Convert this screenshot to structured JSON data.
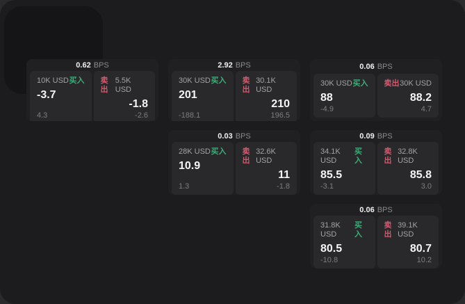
{
  "labels": {
    "bps_unit": "BPS",
    "buy": "买入",
    "sell": "卖出"
  },
  "colors": {
    "buy": "#3fab78",
    "sell": "#d25a6e",
    "window_bg": "#1c1c1e",
    "card_bg": "#202022",
    "panel_bg": "#29292c"
  },
  "cards": [
    {
      "col": 1,
      "row": 1,
      "bps": "0.62",
      "buy": {
        "amount": "10K USD",
        "value": "-3.7",
        "sub": "4.3"
      },
      "sell": {
        "amount": "5.5K USD",
        "value": "-1.8",
        "sub": "-2.6"
      }
    },
    {
      "col": 2,
      "row": 1,
      "bps": "2.92",
      "buy": {
        "amount": "30K USD",
        "value": "201",
        "sub": "-188.1"
      },
      "sell": {
        "amount": "30.1K USD",
        "value": "210",
        "sub": "196.5"
      }
    },
    {
      "col": 3,
      "row": 1,
      "bps": "0.06",
      "buy": {
        "amount": "30K USD",
        "value": "88",
        "sub": "-4.9"
      },
      "sell": {
        "amount": "30K USD",
        "value": "88.2",
        "sub": "4.7"
      }
    },
    {
      "col": 2,
      "row": 2,
      "bps": "0.03",
      "buy": {
        "amount": "28K USD",
        "value": "10.9",
        "sub": "1.3"
      },
      "sell": {
        "amount": "32.6K USD",
        "value": "11",
        "sub": "-1.8"
      }
    },
    {
      "col": 3,
      "row": 2,
      "bps": "0.09",
      "buy": {
        "amount": "34.1K USD",
        "value": "85.5",
        "sub": "-3.1"
      },
      "sell": {
        "amount": "32.8K USD",
        "value": "85.8",
        "sub": "3.0"
      }
    },
    {
      "col": 3,
      "row": 3,
      "bps": "0.06",
      "buy": {
        "amount": "31.8K USD",
        "value": "80.5",
        "sub": "-10.8"
      },
      "sell": {
        "amount": "39.1K USD",
        "value": "80.7",
        "sub": "10.2"
      }
    }
  ]
}
